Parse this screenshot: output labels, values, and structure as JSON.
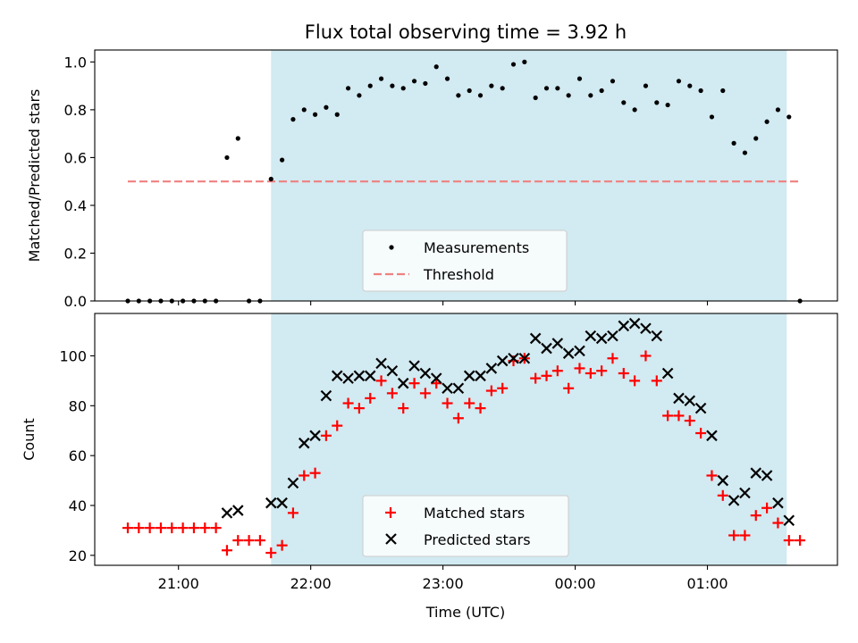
{
  "chart_data": [
    {
      "type": "scatter",
      "title": "Flux total observing time = 3.92 h",
      "xlabel": "",
      "ylabel": "Matched/Predicted stars",
      "xlim": [
        "20:22",
        "01:59"
      ],
      "ylim": [
        0,
        1.05
      ],
      "yticks": [
        "0.0",
        "0.2",
        "0.4",
        "0.6",
        "0.8",
        "1.0"
      ],
      "shaded_interval": [
        "21:42",
        "01:36"
      ],
      "shade_color": "#add8e6",
      "threshold": {
        "value": 0.5,
        "x_start": "20:37",
        "x_end": "01:42",
        "color": "#f08080",
        "style": "dashed"
      },
      "legend": {
        "placement": "lower-center",
        "items": [
          "Measurements",
          "Threshold"
        ]
      },
      "series": [
        {
          "name": "Measurements",
          "marker": "dot",
          "color": "#000000",
          "points": [
            [
              "20:37",
              0.0
            ],
            [
              "20:42",
              0.0
            ],
            [
              "20:47",
              0.0
            ],
            [
              "20:52",
              0.0
            ],
            [
              "20:57",
              0.0
            ],
            [
              "21:02",
              0.0
            ],
            [
              "21:07",
              0.0
            ],
            [
              "21:12",
              0.0
            ],
            [
              "21:17",
              0.0
            ],
            [
              "21:22",
              0.6
            ],
            [
              "21:27",
              0.68
            ],
            [
              "21:32",
              0.0
            ],
            [
              "21:37",
              0.0
            ],
            [
              "21:42",
              0.51
            ],
            [
              "21:47",
              0.59
            ],
            [
              "21:52",
              0.76
            ],
            [
              "21:57",
              0.8
            ],
            [
              "22:02",
              0.78
            ],
            [
              "22:07",
              0.81
            ],
            [
              "22:12",
              0.78
            ],
            [
              "22:17",
              0.89
            ],
            [
              "22:22",
              0.86
            ],
            [
              "22:27",
              0.9
            ],
            [
              "22:32",
              0.93
            ],
            [
              "22:37",
              0.9
            ],
            [
              "22:42",
              0.89
            ],
            [
              "22:47",
              0.92
            ],
            [
              "22:52",
              0.91
            ],
            [
              "22:57",
              0.98
            ],
            [
              "23:02",
              0.93
            ],
            [
              "23:07",
              0.86
            ],
            [
              "23:12",
              0.88
            ],
            [
              "23:17",
              0.86
            ],
            [
              "23:22",
              0.9
            ],
            [
              "23:27",
              0.89
            ],
            [
              "23:32",
              0.99
            ],
            [
              "23:37",
              1.0
            ],
            [
              "23:42",
              0.85
            ],
            [
              "23:47",
              0.89
            ],
            [
              "23:52",
              0.89
            ],
            [
              "23:57",
              0.86
            ],
            [
              "00:02",
              0.93
            ],
            [
              "00:07",
              0.86
            ],
            [
              "00:12",
              0.88
            ],
            [
              "00:17",
              0.92
            ],
            [
              "00:22",
              0.83
            ],
            [
              "00:27",
              0.8
            ],
            [
              "00:32",
              0.9
            ],
            [
              "00:37",
              0.83
            ],
            [
              "00:42",
              0.82
            ],
            [
              "00:47",
              0.92
            ],
            [
              "00:52",
              0.9
            ],
            [
              "00:57",
              0.88
            ],
            [
              "01:02",
              0.77
            ],
            [
              "01:07",
              0.88
            ],
            [
              "01:12",
              0.66
            ],
            [
              "01:17",
              0.62
            ],
            [
              "01:22",
              0.68
            ],
            [
              "01:27",
              0.75
            ],
            [
              "01:32",
              0.8
            ],
            [
              "01:37",
              0.77
            ],
            [
              "01:42",
              0.0
            ]
          ]
        }
      ]
    },
    {
      "type": "scatter",
      "xlabel": "Time (UTC)",
      "ylabel": "Count",
      "xlim": [
        "20:22",
        "01:59"
      ],
      "ylim": [
        16,
        117
      ],
      "xticks": [
        "21:00",
        "22:00",
        "23:00",
        "00:00",
        "01:00"
      ],
      "yticks": [
        "20",
        "40",
        "60",
        "80",
        "100"
      ],
      "shaded_interval": [
        "21:42",
        "01:36"
      ],
      "shade_color": "#add8e6",
      "legend": {
        "placement": "lower-center",
        "items": [
          "Matched stars",
          "Predicted stars"
        ]
      },
      "series": [
        {
          "name": "Matched stars",
          "marker": "plus",
          "color": "#ff0000",
          "points": [
            [
              "20:37",
              31
            ],
            [
              "20:42",
              31
            ],
            [
              "20:47",
              31
            ],
            [
              "20:52",
              31
            ],
            [
              "20:57",
              31
            ],
            [
              "21:02",
              31
            ],
            [
              "21:07",
              31
            ],
            [
              "21:12",
              31
            ],
            [
              "21:17",
              31
            ],
            [
              "21:22",
              22
            ],
            [
              "21:27",
              26
            ],
            [
              "21:32",
              26
            ],
            [
              "21:37",
              26
            ],
            [
              "21:42",
              21
            ],
            [
              "21:47",
              24
            ],
            [
              "21:52",
              37
            ],
            [
              "21:57",
              52
            ],
            [
              "22:02",
              53
            ],
            [
              "22:07",
              68
            ],
            [
              "22:12",
              72
            ],
            [
              "22:17",
              81
            ],
            [
              "22:22",
              79
            ],
            [
              "22:27",
              83
            ],
            [
              "22:32",
              90
            ],
            [
              "22:37",
              85
            ],
            [
              "22:42",
              79
            ],
            [
              "22:47",
              89
            ],
            [
              "22:52",
              85
            ],
            [
              "22:57",
              89
            ],
            [
              "23:02",
              81
            ],
            [
              "23:07",
              75
            ],
            [
              "23:12",
              81
            ],
            [
              "23:17",
              79
            ],
            [
              "23:22",
              86
            ],
            [
              "23:27",
              87
            ],
            [
              "23:32",
              98
            ],
            [
              "23:37",
              99
            ],
            [
              "23:42",
              91
            ],
            [
              "23:47",
              92
            ],
            [
              "23:52",
              94
            ],
            [
              "23:57",
              87
            ],
            [
              "00:02",
              95
            ],
            [
              "00:07",
              93
            ],
            [
              "00:12",
              94
            ],
            [
              "00:17",
              99
            ],
            [
              "00:22",
              93
            ],
            [
              "00:27",
              90
            ],
            [
              "00:32",
              100
            ],
            [
              "00:37",
              90
            ],
            [
              "00:42",
              76
            ],
            [
              "00:47",
              76
            ],
            [
              "00:52",
              74
            ],
            [
              "00:57",
              69
            ],
            [
              "01:02",
              52
            ],
            [
              "01:07",
              44
            ],
            [
              "01:12",
              28
            ],
            [
              "01:17",
              28
            ],
            [
              "01:22",
              36
            ],
            [
              "01:27",
              39
            ],
            [
              "01:32",
              33
            ],
            [
              "01:37",
              26
            ],
            [
              "01:42",
              26
            ]
          ]
        },
        {
          "name": "Predicted stars",
          "marker": "x",
          "color": "#000000",
          "points": [
            [
              "21:22",
              37
            ],
            [
              "21:27",
              38
            ],
            [
              "21:42",
              41
            ],
            [
              "21:47",
              41
            ],
            [
              "21:52",
              49
            ],
            [
              "21:57",
              65
            ],
            [
              "22:02",
              68
            ],
            [
              "22:07",
              84
            ],
            [
              "22:12",
              92
            ],
            [
              "22:17",
              91
            ],
            [
              "22:22",
              92
            ],
            [
              "22:27",
              92
            ],
            [
              "22:32",
              97
            ],
            [
              "22:37",
              94
            ],
            [
              "22:42",
              89
            ],
            [
              "22:47",
              96
            ],
            [
              "22:52",
              93
            ],
            [
              "22:57",
              91
            ],
            [
              "23:02",
              87
            ],
            [
              "23:07",
              87
            ],
            [
              "23:12",
              92
            ],
            [
              "23:17",
              92
            ],
            [
              "23:22",
              95
            ],
            [
              "23:27",
              98
            ],
            [
              "23:32",
              99
            ],
            [
              "23:37",
              99
            ],
            [
              "23:42",
              107
            ],
            [
              "23:47",
              103
            ],
            [
              "23:52",
              105
            ],
            [
              "23:57",
              101
            ],
            [
              "00:02",
              102
            ],
            [
              "00:07",
              108
            ],
            [
              "00:12",
              107
            ],
            [
              "00:17",
              108
            ],
            [
              "00:22",
              112
            ],
            [
              "00:27",
              113
            ],
            [
              "00:32",
              111
            ],
            [
              "00:37",
              108
            ],
            [
              "00:42",
              93
            ],
            [
              "00:47",
              83
            ],
            [
              "00:52",
              82
            ],
            [
              "00:57",
              79
            ],
            [
              "01:02",
              68
            ],
            [
              "01:07",
              50
            ],
            [
              "01:12",
              42
            ],
            [
              "01:17",
              45
            ],
            [
              "01:22",
              53
            ],
            [
              "01:27",
              52
            ],
            [
              "01:32",
              41
            ],
            [
              "01:37",
              34
            ]
          ]
        }
      ]
    }
  ]
}
